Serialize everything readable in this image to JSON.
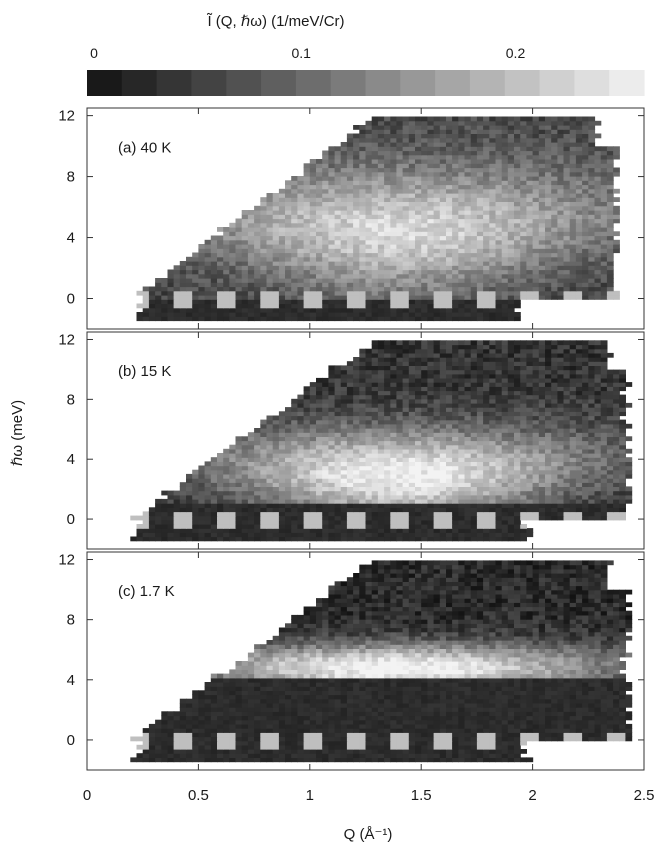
{
  "colorbar": {
    "label": "Ĩ (Q, ℏω) (1/meV/Cr)",
    "ticks": [
      {
        "value": 0,
        "label": "0"
      },
      {
        "value": 0.1,
        "label": "0.1"
      },
      {
        "value": 0.2,
        "label": "0.2"
      }
    ],
    "range": [
      0,
      0.26
    ]
  },
  "chart_data": [
    {
      "type": "heatmap",
      "annotation": "(a) 40 K",
      "xlabel": "",
      "ylabel": "",
      "xlim": [
        0,
        2.5
      ],
      "ylim": [
        -2,
        12.5
      ],
      "yticks": [
        0,
        4,
        8,
        12
      ],
      "xticks": [
        0,
        0.5,
        1,
        1.5,
        2,
        2.5
      ],
      "show_xtick_labels": false,
      "coverage": {
        "q_low_at_e0": 0.18,
        "q_low_slope": 0.09,
        "q_high": 2.4
      },
      "features": {
        "gap_meV": 0.0,
        "mode_center_meV": 4.5,
        "mode_width_meV": 4.0,
        "mode_peak": 0.17,
        "background": 0.06
      }
    },
    {
      "type": "heatmap",
      "annotation": "(b) 15 K",
      "xlabel": "",
      "ylabel": "ℏω (meV)",
      "xlim": [
        0,
        2.5
      ],
      "ylim": [
        -2,
        12.5
      ],
      "yticks": [
        0,
        4,
        8,
        12
      ],
      "xticks": [
        0,
        0.5,
        1,
        1.5,
        2,
        2.5
      ],
      "show_xtick_labels": false,
      "coverage": {
        "q_low_at_e0": 0.18,
        "q_low_slope": 0.09,
        "q_high": 2.45
      },
      "features": {
        "gap_meV": 1.0,
        "mode_center_meV": 3.0,
        "mode_width_meV": 3.0,
        "mode_peak": 0.22,
        "background": 0.04
      }
    },
    {
      "type": "heatmap",
      "annotation": "(c) 1.7 K",
      "xlabel": "Q (Å⁻¹)",
      "ylabel": "",
      "xlim": [
        0,
        2.5
      ],
      "ylim": [
        -2,
        12.5
      ],
      "yticks": [
        0,
        4,
        8,
        12
      ],
      "xticks": [
        0,
        0.5,
        1,
        1.5,
        2,
        2.5
      ],
      "xtick_labels": [
        "0",
        "0.5",
        "1",
        "1.5",
        "2",
        "2.5"
      ],
      "show_xtick_labels": true,
      "coverage": {
        "q_low_at_e0": 0.18,
        "q_low_slope": 0.09,
        "q_high": 2.45
      },
      "features": {
        "gap_meV": 4.0,
        "mode_center_meV": 4.8,
        "mode_width_meV": 1.6,
        "mode_peak": 0.24,
        "background": 0.03
      }
    }
  ]
}
